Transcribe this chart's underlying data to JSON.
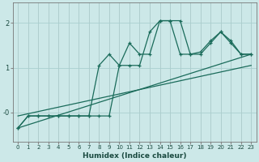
{
  "xlabel": "Humidex (Indice chaleur)",
  "background_color": "#cce8e8",
  "grid_color": "#aacfcf",
  "line_color": "#1a6b5a",
  "xlim": [
    -0.5,
    23.5
  ],
  "ylim": [
    -0.65,
    2.45
  ],
  "ytick_labels": [
    "-0",
    "1",
    "2"
  ],
  "ytick_vals": [
    0.0,
    1.0,
    2.0
  ],
  "xticks": [
    0,
    1,
    2,
    3,
    4,
    5,
    6,
    7,
    8,
    9,
    10,
    11,
    12,
    13,
    14,
    15,
    16,
    17,
    18,
    19,
    20,
    21,
    22,
    23
  ],
  "curve1_x": [
    0,
    1,
    2,
    3,
    4,
    5,
    6,
    7,
    8,
    9,
    10,
    11,
    12,
    13,
    14,
    15,
    16,
    17,
    18,
    19,
    20,
    21,
    22,
    23
  ],
  "curve1_y": [
    -0.35,
    -0.08,
    -0.08,
    -0.08,
    -0.08,
    -0.08,
    -0.08,
    -0.08,
    -0.08,
    -0.08,
    1.05,
    1.05,
    1.05,
    1.8,
    2.05,
    2.05,
    1.3,
    1.3,
    1.3,
    1.55,
    1.8,
    1.55,
    1.3,
    1.3
  ],
  "curve2_x": [
    0,
    1,
    2,
    3,
    4,
    5,
    6,
    7,
    8,
    9,
    10,
    11,
    12,
    13,
    14,
    15,
    16,
    17,
    18,
    19,
    20,
    21,
    22,
    23
  ],
  "curve2_y": [
    -0.35,
    -0.08,
    -0.08,
    -0.08,
    -0.08,
    -0.08,
    -0.08,
    -0.08,
    1.05,
    1.3,
    1.05,
    1.55,
    1.3,
    1.3,
    2.05,
    2.05,
    2.05,
    1.3,
    1.35,
    1.6,
    1.8,
    1.6,
    1.3,
    1.3
  ],
  "line1_x": [
    0,
    23
  ],
  "line1_y": [
    -0.35,
    1.3
  ],
  "line2_x": [
    0,
    23
  ],
  "line2_y": [
    -0.08,
    1.05
  ]
}
